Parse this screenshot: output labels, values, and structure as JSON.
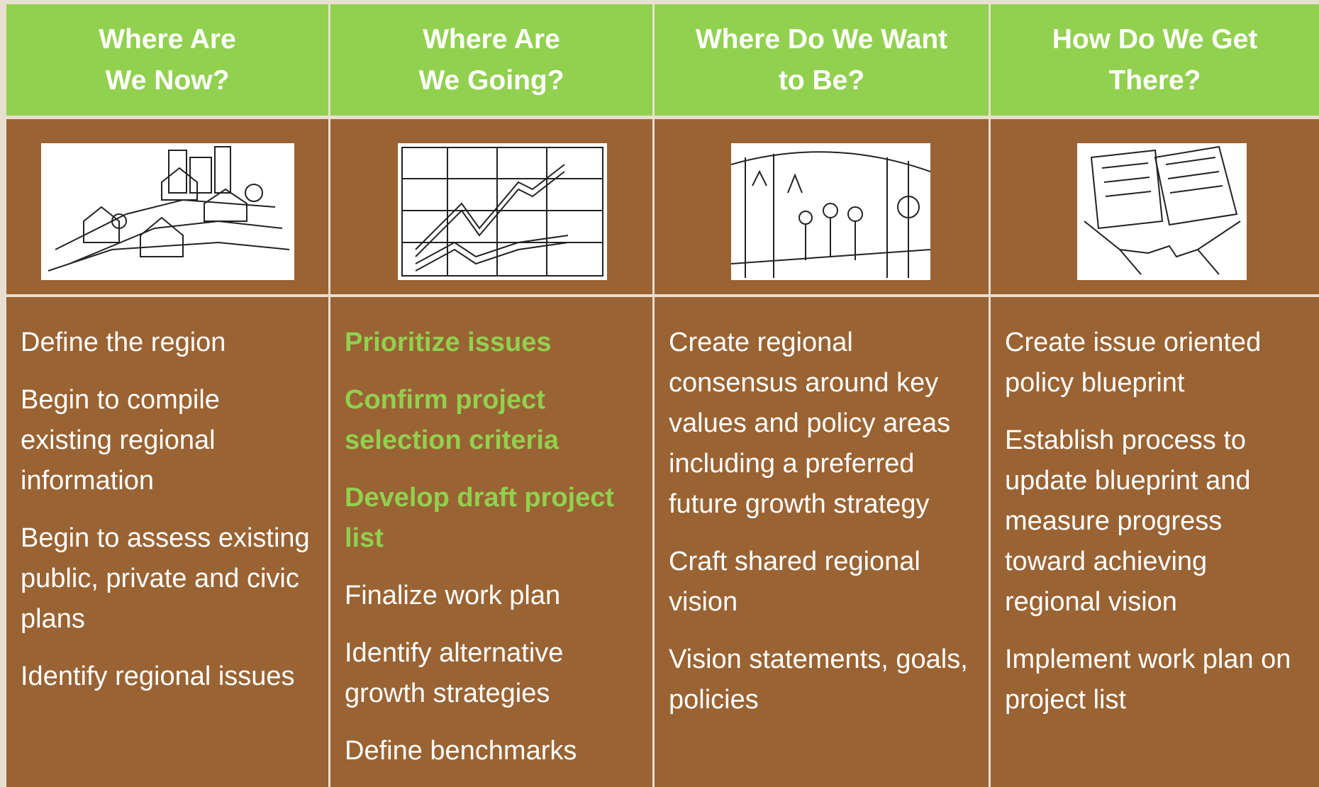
{
  "columns": [
    {
      "header": [
        "Where Are",
        "We Now?"
      ],
      "items": [
        {
          "text": "Define the region",
          "highlight": false
        },
        {
          "text": "Begin to compile existing regional information",
          "highlight": false
        },
        {
          "text": "Begin to assess existing public, private and civic plans",
          "highlight": false
        },
        {
          "text": "Identify regional issues",
          "highlight": false
        }
      ]
    },
    {
      "header": [
        "Where Are",
        "We Going?"
      ],
      "items": [
        {
          "text": "Prioritize issues",
          "highlight": true
        },
        {
          "text": "Confirm project selection criteria",
          "highlight": true
        },
        {
          "text": "Develop draft project list",
          "highlight": true
        },
        {
          "text": "Finalize work plan",
          "highlight": false
        },
        {
          "text": "Identify alternative growth strategies",
          "highlight": false
        },
        {
          "text": "Define benchmarks",
          "highlight": false
        }
      ]
    },
    {
      "header": [
        "Where Do We Want",
        "to Be?"
      ],
      "items": [
        {
          "text": "Create regional consensus around key values and policy areas including a preferred future growth strategy",
          "highlight": false
        },
        {
          "text": "Craft shared regional vision",
          "highlight": false
        },
        {
          "text": "Vision statements, goals, policies",
          "highlight": false
        }
      ]
    },
    {
      "header": [
        "How Do We Get",
        "There?"
      ],
      "items": [
        {
          "text": "Create issue oriented policy blueprint",
          "highlight": false
        },
        {
          "text": "Establish process to update blueprint and measure progress toward achieving regional vision",
          "highlight": false
        },
        {
          "text": "Implement work plan on project list",
          "highlight": false
        }
      ]
    }
  ]
}
